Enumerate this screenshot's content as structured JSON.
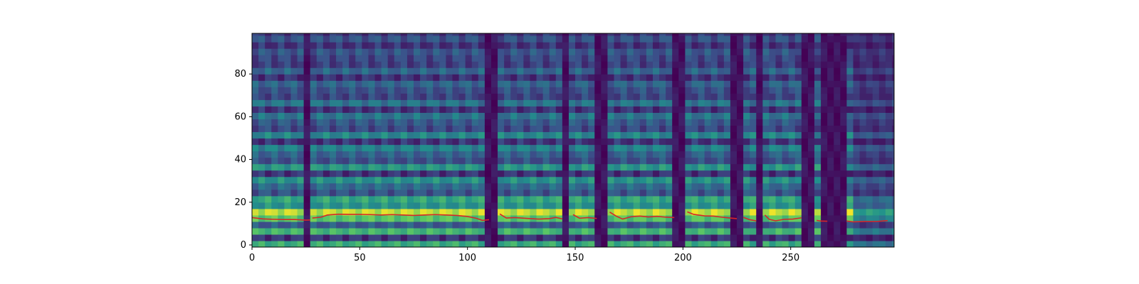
{
  "chart_data": {
    "type": "heatmap",
    "title": "",
    "xlabel": "",
    "ylabel": "",
    "xlim": [
      0,
      298
    ],
    "ylim": [
      -1,
      99
    ],
    "x_ticks": [
      0,
      50,
      100,
      150,
      200,
      250
    ],
    "y_ticks": [
      0,
      20,
      40,
      60,
      80
    ],
    "x_tick_labels": [
      "0",
      "50",
      "100",
      "150",
      "200",
      "250"
    ],
    "y_tick_labels": [
      "0",
      "20",
      "40",
      "60",
      "80"
    ],
    "colormap": [
      "#440154",
      "#3b528b",
      "#21918c",
      "#5ec962",
      "#fde725"
    ],
    "series": [
      {
        "type": "line",
        "color": "#d62728",
        "segments": [
          [
            [
              0,
              12.8
            ],
            [
              5,
              12.2
            ],
            [
              10,
              12.0
            ],
            [
              15,
              11.9
            ],
            [
              20,
              11.9
            ],
            [
              25,
              11.6
            ],
            [
              27,
              11.7
            ]
          ],
          [
            [
              28,
              12.6
            ],
            [
              32,
              13.0
            ],
            [
              35,
              14.0
            ],
            [
              40,
              14.4
            ],
            [
              45,
              14.3
            ],
            [
              50,
              14.3
            ],
            [
              55,
              14.2
            ],
            [
              60,
              14.0
            ],
            [
              65,
              14.2
            ],
            [
              70,
              14.0
            ],
            [
              75,
              13.8
            ],
            [
              80,
              14.0
            ],
            [
              85,
              14.2
            ],
            [
              90,
              14.0
            ],
            [
              95,
              13.8
            ],
            [
              100,
              13.3
            ],
            [
              104,
              12.5
            ],
            [
              107,
              11.5
            ],
            [
              110,
              11.8
            ]
          ],
          [
            [
              115,
              14.5
            ],
            [
              118,
              12.6
            ],
            [
              122,
              12.8
            ],
            [
              128,
              12.4
            ],
            [
              133,
              12.1
            ],
            [
              138,
              12.3
            ],
            [
              141,
              12.9
            ],
            [
              144,
              12.2
            ]
          ],
          [
            [
              149,
              14.2
            ],
            [
              152,
              12.5
            ],
            [
              156,
              12.8
            ],
            [
              160,
              12.4
            ]
          ],
          [
            [
              166,
              15.4
            ],
            [
              169,
              13.5
            ],
            [
              172,
              12.1
            ],
            [
              176,
              13.2
            ],
            [
              180,
              13.5
            ],
            [
              184,
              13.1
            ],
            [
              188,
              13.4
            ],
            [
              192,
              13.0
            ],
            [
              196,
              12.8
            ]
          ],
          [
            [
              202,
              15.5
            ],
            [
              205,
              14.3
            ],
            [
              210,
              13.6
            ],
            [
              214,
              13.5
            ],
            [
              218,
              13.0
            ],
            [
              222,
              12.6
            ],
            [
              225,
              12.3
            ]
          ],
          [
            [
              228,
              12.9
            ],
            [
              231,
              11.8
            ],
            [
              234,
              11.3
            ]
          ],
          [
            [
              238,
              14.0
            ],
            [
              240,
              12.0
            ],
            [
              243,
              11.3
            ],
            [
              247,
              12.0
            ],
            [
              251,
              12.1
            ],
            [
              255,
              12.7
            ]
          ],
          [
            [
              262,
              11.5
            ],
            [
              264,
              11.2
            ],
            [
              267,
              11.1
            ]
          ],
          [
            [
              276,
              11.2
            ],
            [
              279,
              10.8
            ],
            [
              285,
              11.0
            ],
            [
              290,
              11.0
            ],
            [
              295,
              11.4
            ]
          ]
        ]
      }
    ],
    "dark_bands": [
      [
        23,
        26
      ],
      [
        108,
        113
      ],
      [
        143,
        147
      ],
      [
        160,
        164
      ],
      [
        196,
        200
      ],
      [
        223,
        226
      ],
      [
        233,
        236
      ],
      [
        255,
        260
      ],
      [
        265,
        276
      ]
    ]
  }
}
